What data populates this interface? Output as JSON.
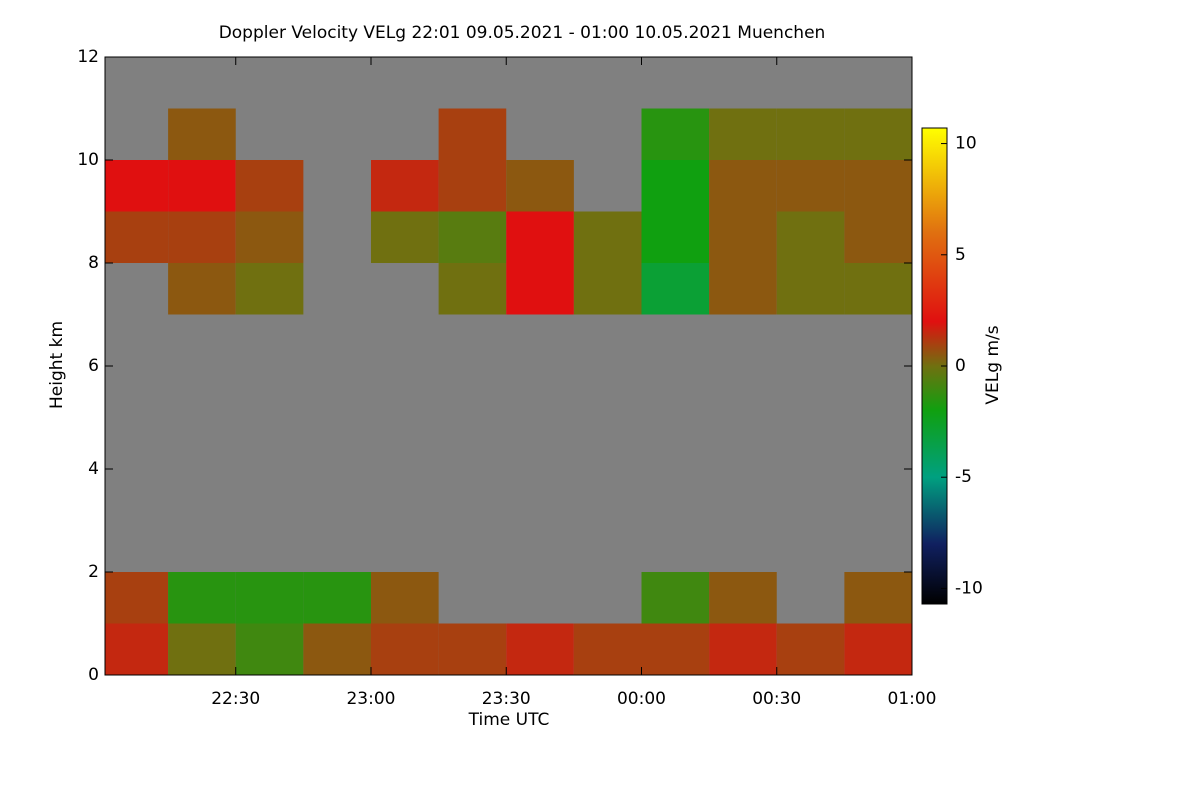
{
  "chart_data": {
    "type": "heatmap",
    "title": "Doppler Velocity VELg   22:01 09.05.2021 - 01:00 10.05.2021 Muenchen",
    "x_label": "Time UTC",
    "y_label": "Height km",
    "x_bins": [
      22.0167,
      22.25,
      22.5,
      22.75,
      23,
      23.25,
      23.5,
      23.75,
      24,
      24.25,
      24.5,
      24.75,
      25
    ],
    "y_bins": [
      0,
      1,
      2,
      3,
      4,
      5,
      6,
      7,
      8,
      9,
      10,
      11,
      12
    ],
    "values": [
      [
        1.5,
        0,
        -1,
        0.5,
        1,
        1,
        1.5,
        1,
        1,
        1.5,
        1,
        1.5
      ],
      [
        1,
        -1.5,
        -1.5,
        -1.5,
        0.5,
        null,
        null,
        null,
        -1,
        0.5,
        null,
        0.5
      ],
      [
        null,
        null,
        null,
        null,
        null,
        null,
        null,
        null,
        null,
        null,
        null,
        null
      ],
      [
        null,
        null,
        null,
        null,
        null,
        null,
        null,
        null,
        null,
        null,
        null,
        null
      ],
      [
        null,
        null,
        null,
        null,
        null,
        null,
        null,
        null,
        null,
        null,
        null,
        null
      ],
      [
        null,
        null,
        null,
        null,
        null,
        null,
        null,
        null,
        null,
        null,
        null,
        null
      ],
      [
        null,
        null,
        null,
        null,
        null,
        null,
        null,
        null,
        null,
        null,
        null,
        null
      ],
      [
        null,
        0.5,
        0,
        null,
        null,
        0,
        2,
        0,
        -3,
        0.5,
        0,
        0
      ],
      [
        1,
        1,
        0.5,
        null,
        0,
        -0.5,
        2,
        0,
        -2,
        0.5,
        0,
        0.5
      ],
      [
        2,
        2,
        1,
        null,
        1.5,
        1,
        0.5,
        null,
        -2,
        0.5,
        0.5,
        0.5
      ],
      [
        null,
        0.5,
        null,
        null,
        null,
        1,
        null,
        null,
        -1.5,
        0,
        0,
        0
      ],
      [
        null,
        null,
        null,
        null,
        null,
        null,
        null,
        null,
        null,
        null,
        null,
        null
      ]
    ],
    "xlim": [
      22.0167,
      25
    ],
    "xticks": [
      {
        "value": 22.5,
        "label": "22:30"
      },
      {
        "value": 23,
        "label": "23:00"
      },
      {
        "value": 23.5,
        "label": "23:30"
      },
      {
        "value": 24,
        "label": "00:00"
      },
      {
        "value": 24.5,
        "label": "00:30"
      },
      {
        "value": 25,
        "label": "01:00"
      }
    ],
    "ylim": [
      0,
      12
    ],
    "yticks": [
      0,
      2,
      4,
      6,
      8,
      10,
      12
    ],
    "background": "#808080",
    "colorbar_label": "VELg m/s",
    "clim": [
      -10.7,
      10.7
    ],
    "cticks": [
      -10,
      -5,
      0,
      5,
      10
    ],
    "colorscale": [
      [
        -10.7,
        "#000000"
      ],
      [
        -8,
        "#102060"
      ],
      [
        -5,
        "#00a080"
      ],
      [
        -2,
        "#10a010"
      ],
      [
        0,
        "#707010"
      ],
      [
        2,
        "#e01010"
      ],
      [
        6,
        "#e07010"
      ],
      [
        10.7,
        "#ffff00"
      ]
    ]
  }
}
